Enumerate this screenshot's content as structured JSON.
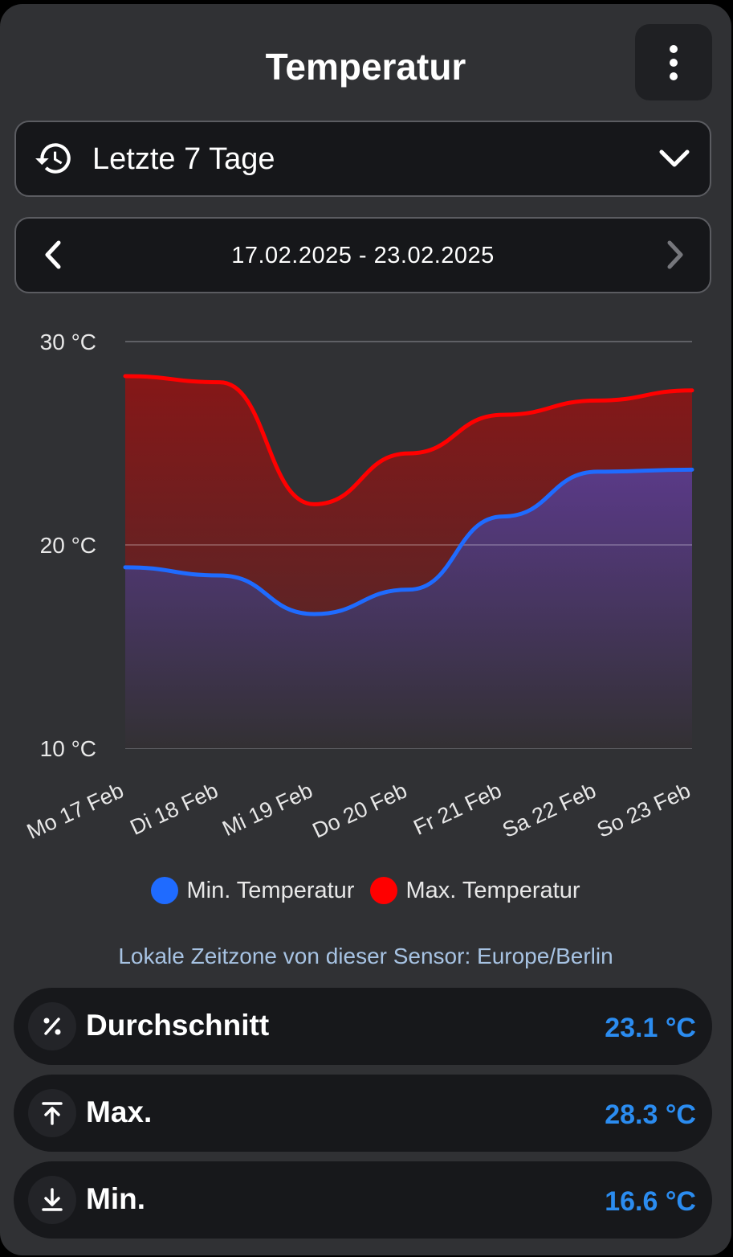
{
  "title": "Temperatur",
  "icons": {
    "menu": "more-vertical-icon",
    "history": "history-icon",
    "dropdown": "chevron-down-icon",
    "prev": "chevron-left-icon",
    "next": "chevron-right-icon",
    "average": "percent-icon",
    "max": "arrow-up-to-line-icon",
    "min": "arrow-down-to-line-icon"
  },
  "period_select": {
    "label": "Letzte 7 Tage"
  },
  "date_range": {
    "text": "17.02.2025 - 23.02.2025"
  },
  "chart_data": {
    "type": "area",
    "categories": [
      "Mo 17 Feb",
      "Di 18 Feb",
      "Mi 19 Feb",
      "Do 20 Feb",
      "Fr 21 Feb",
      "Sa 22 Feb",
      "So 23 Feb"
    ],
    "ylim": [
      10,
      30
    ],
    "yticks": [
      10,
      20,
      30
    ],
    "ytick_labels": [
      "10 °C",
      "20 °C",
      "30 °C"
    ],
    "grid": true,
    "legend_position": "bottom",
    "series": [
      {
        "name": "Min. Temperatur",
        "color": "#1f6bff",
        "values": [
          18.9,
          18.5,
          16.6,
          17.8,
          21.4,
          23.6,
          23.7
        ]
      },
      {
        "name": "Max. Temperatur",
        "color": "#ff0000",
        "values": [
          28.3,
          28.0,
          22.0,
          24.5,
          26.4,
          27.1,
          27.6
        ]
      }
    ]
  },
  "timezone_note": "Lokale Zeitzone von dieser Sensor: Europe/Berlin",
  "stats": [
    {
      "label": "Durchschnitt",
      "value": "23.1 °C"
    },
    {
      "label": "Max.",
      "value": "28.3 °C"
    },
    {
      "label": "Min.",
      "value": "16.6 °C"
    }
  ]
}
